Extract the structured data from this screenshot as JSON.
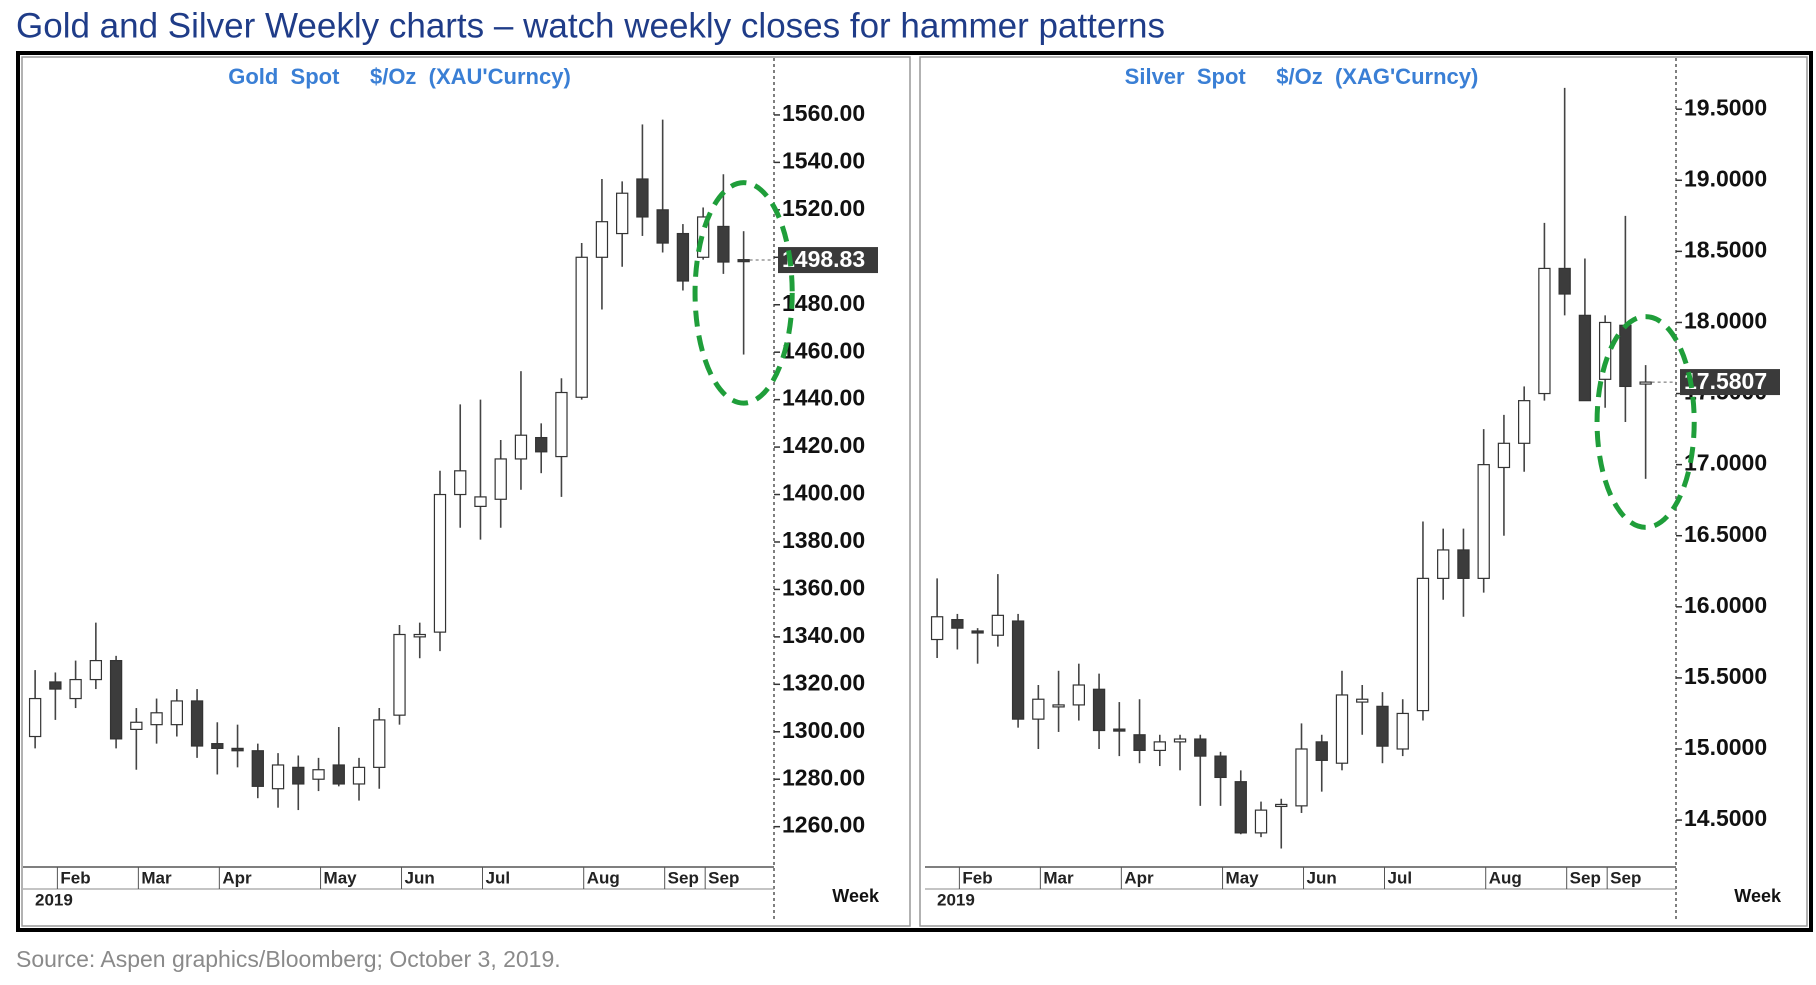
{
  "title": "Gold and Silver Weekly charts – watch weekly closes for hammer patterns",
  "source": "Source: Aspen graphics/Bloomberg; October 3, 2019.",
  "chart_data": [
    {
      "type": "candlestick",
      "title": "Gold  Spot     $/Oz  (XAU'Curncy)",
      "categories": [
        null,
        null,
        "Feb",
        null,
        null,
        null,
        "Mar",
        null,
        null,
        null,
        "Apr",
        null,
        null,
        null,
        null,
        "May",
        null,
        null,
        null,
        "Jun",
        null,
        null,
        null,
        "Jul",
        null,
        null,
        null,
        null,
        "Aug",
        null,
        null,
        null,
        "Sep",
        null,
        "Sep",
        null
      ],
      "open": [
        1298,
        1321,
        1314,
        1322,
        1330,
        1301,
        1303,
        1303,
        1313,
        1295,
        1293,
        1292,
        1276,
        1285,
        1280,
        1286,
        1278,
        1285,
        1307,
        1340,
        1342,
        1400,
        1395,
        1398,
        1415,
        1424,
        1416,
        1441,
        1500,
        1510,
        1533,
        1520,
        1510,
        1500,
        1513,
        1499
      ],
      "high": [
        1326,
        1325,
        1330,
        1346,
        1332,
        1310,
        1314,
        1318,
        1318,
        1304,
        1303,
        1295,
        1291,
        1290,
        1289,
        1302,
        1289,
        1310,
        1345,
        1346,
        1410,
        1438,
        1440,
        1423,
        1452,
        1430,
        1449,
        1506,
        1533,
        1532,
        1556,
        1558,
        1514,
        1521,
        1535,
        1511
      ],
      "low": [
        1293,
        1305,
        1310,
        1318,
        1293,
        1284,
        1295,
        1298,
        1289,
        1282,
        1285,
        1272,
        1268,
        1267,
        1275,
        1277,
        1271,
        1276,
        1303,
        1331,
        1334,
        1386,
        1381,
        1386,
        1402,
        1409,
        1399,
        1440,
        1478,
        1496,
        1509,
        1502,
        1486,
        1499,
        1493,
        1459
      ],
      "close": [
        1314,
        1318,
        1322,
        1330,
        1297,
        1304,
        1308,
        1313,
        1294,
        1293,
        1292,
        1277,
        1286,
        1278,
        1284,
        1278,
        1285,
        1305,
        1341,
        1341,
        1400,
        1410,
        1399,
        1415,
        1425,
        1418,
        1443,
        1500,
        1515,
        1527,
        1517,
        1506,
        1490,
        1517,
        1498,
        1498.83
      ],
      "ylim": [
        1243,
        1584
      ],
      "yticks": [
        {
          "value": 1260,
          "label": "1260.00"
        },
        {
          "value": 1280,
          "label": "1280.00"
        },
        {
          "value": 1300,
          "label": "1300.00"
        },
        {
          "value": 1320,
          "label": "1320.00"
        },
        {
          "value": 1340,
          "label": "1340.00"
        },
        {
          "value": 1360,
          "label": "1360.00"
        },
        {
          "value": 1380,
          "label": "1380.00"
        },
        {
          "value": 1400,
          "label": "1400.00"
        },
        {
          "value": 1420,
          "label": "1420.00"
        },
        {
          "value": 1440,
          "label": "1440.00"
        },
        {
          "value": 1460,
          "label": "1460.00"
        },
        {
          "value": 1480,
          "label": "1480.00"
        },
        {
          "value": 1500,
          "label": "1500.00"
        },
        {
          "value": 1520,
          "label": "1520.00"
        },
        {
          "value": 1540,
          "label": "1540.00"
        },
        {
          "value": 1560,
          "label": "1560.00"
        }
      ],
      "last_value": {
        "value": 1498.83,
        "label": "1498.83"
      },
      "year_label": "2019",
      "x_axis_label": "Week",
      "up_color": "#ffffff",
      "down_color": "#3c3c3c",
      "highlight_color": "#1f9e3a"
    },
    {
      "type": "candlestick",
      "title": "Silver  Spot     $/Oz  (XAG'Curncy)",
      "categories": [
        null,
        null,
        "Feb",
        null,
        null,
        null,
        "Mar",
        null,
        null,
        null,
        "Apr",
        null,
        null,
        null,
        null,
        "May",
        null,
        null,
        null,
        "Jun",
        null,
        null,
        null,
        "Jul",
        null,
        null,
        null,
        null,
        "Aug",
        null,
        null,
        null,
        "Sep",
        null,
        "Sep",
        null
      ],
      "open": [
        15.77,
        15.91,
        15.83,
        15.8,
        15.9,
        15.21,
        15.3,
        15.31,
        15.42,
        15.14,
        15.1,
        14.99,
        15.05,
        15.07,
        14.95,
        14.77,
        14.41,
        14.6,
        14.6,
        15.05,
        14.9,
        15.33,
        15.3,
        15.0,
        15.27,
        16.2,
        16.4,
        16.2,
        16.98,
        17.15,
        17.5,
        18.38,
        18.05,
        17.6,
        17.98,
        17.57
      ],
      "high": [
        16.2,
        15.95,
        15.85,
        16.23,
        15.95,
        15.45,
        15.55,
        15.6,
        15.53,
        15.33,
        15.35,
        15.1,
        15.1,
        15.1,
        14.98,
        14.85,
        14.63,
        14.65,
        15.18,
        15.1,
        15.55,
        15.45,
        15.4,
        15.35,
        16.6,
        16.55,
        16.55,
        17.25,
        17.35,
        17.55,
        18.7,
        19.65,
        18.45,
        18.05,
        18.75,
        17.7
      ],
      "low": [
        15.64,
        15.7,
        15.6,
        15.72,
        15.15,
        15.0,
        15.12,
        15.2,
        15.0,
        14.95,
        14.9,
        14.88,
        14.85,
        14.6,
        14.6,
        14.4,
        14.38,
        14.3,
        14.55,
        14.7,
        14.85,
        15.1,
        14.9,
        14.95,
        15.2,
        16.05,
        15.93,
        16.1,
        16.5,
        16.95,
        17.45,
        18.05,
        17.45,
        17.4,
        17.3,
        16.9
      ],
      "close": [
        15.93,
        15.85,
        15.82,
        15.94,
        15.21,
        15.35,
        15.31,
        15.45,
        15.13,
        15.13,
        14.99,
        15.05,
        15.07,
        14.95,
        14.8,
        14.41,
        14.57,
        14.61,
        15.0,
        14.92,
        15.38,
        15.35,
        15.02,
        15.25,
        16.2,
        16.4,
        16.2,
        17.0,
        17.15,
        17.45,
        18.38,
        18.2,
        17.45,
        18.0,
        17.55,
        17.5807
      ],
      "ylim": [
        14.17,
        19.86
      ],
      "yticks": [
        {
          "value": 14.5,
          "label": "14.5000"
        },
        {
          "value": 15,
          "label": "15.0000"
        },
        {
          "value": 15.5,
          "label": "15.5000"
        },
        {
          "value": 16,
          "label": "16.0000"
        },
        {
          "value": 16.5,
          "label": "16.5000"
        },
        {
          "value": 17,
          "label": "17.0000"
        },
        {
          "value": 17.5,
          "label": "17.5000"
        },
        {
          "value": 18,
          "label": "18.0000"
        },
        {
          "value": 18.5,
          "label": "18.5000"
        },
        {
          "value": 19,
          "label": "19.0000"
        },
        {
          "value": 19.5,
          "label": "19.5000"
        }
      ],
      "last_value": {
        "value": 17.5807,
        "label": "17.5807"
      },
      "year_label": "2019",
      "x_axis_label": "Week",
      "up_color": "#ffffff",
      "down_color": "#3c3c3c",
      "highlight_color": "#1f9e3a"
    }
  ]
}
